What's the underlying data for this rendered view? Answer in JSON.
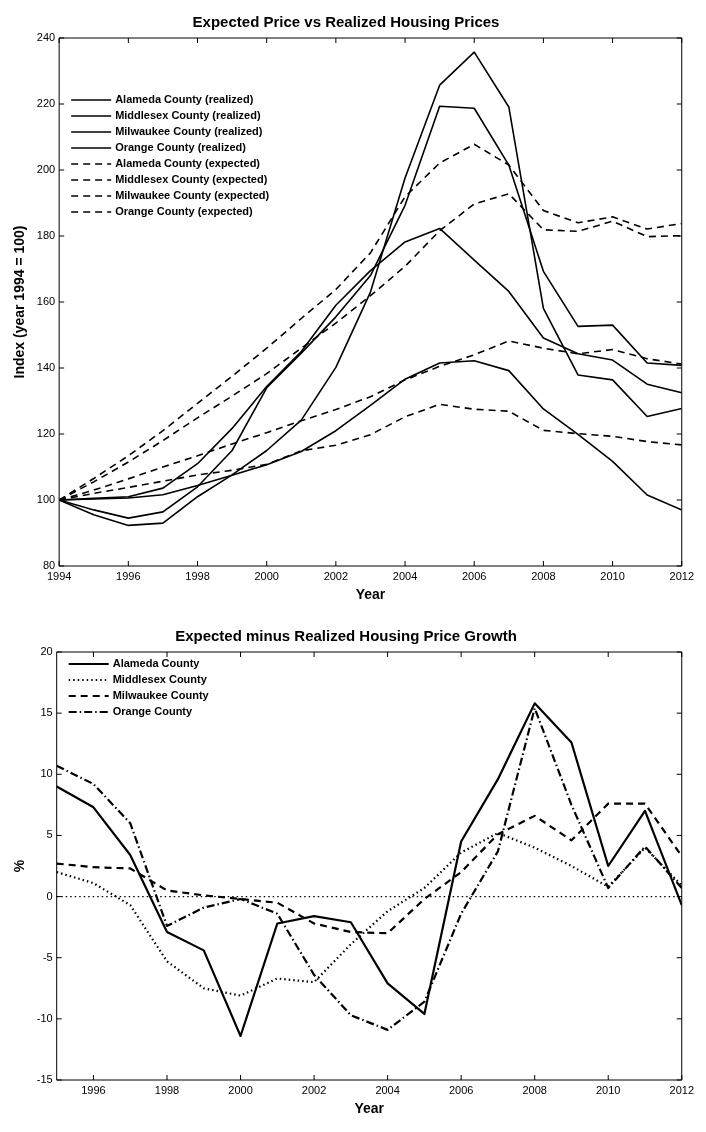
{
  "chart_data": [
    {
      "type": "line",
      "title": "Expected Price vs Realized Housing Prices",
      "xlabel": "Year",
      "ylabel": "Index (year 1994 = 100)",
      "x": [
        1994,
        1995,
        1996,
        1997,
        1998,
        1999,
        2000,
        2001,
        2002,
        2003,
        2004,
        2005,
        2006,
        2007,
        2008,
        2009,
        2010,
        2011,
        2012
      ],
      "xlim": [
        1994,
        2012
      ],
      "xticks": [
        1994,
        1996,
        1998,
        2000,
        2002,
        2004,
        2006,
        2008,
        2010,
        2012
      ],
      "ylim": [
        80,
        240
      ],
      "yticks": [
        80,
        100,
        120,
        140,
        160,
        180,
        200,
        220,
        240
      ],
      "legend": "top left",
      "marker": "none",
      "series": [
        {
          "name": "Alameda County (realized)",
          "color": "#000000",
          "line_style": "solid",
          "values": [
            100,
            97,
            94.5,
            96.4,
            104,
            115,
            134,
            144.5,
            155.5,
            168,
            189.3,
            219.3,
            218.7,
            201.5,
            169.3,
            152.6,
            153,
            141.5,
            140.8
          ]
        },
        {
          "name": "Middlesex County (realized)",
          "color": "#000000",
          "line_style": "solid",
          "values": [
            100,
            100.5,
            101,
            103.6,
            111,
            121.7,
            134.4,
            145,
            159,
            169.5,
            178.2,
            182.3,
            172.7,
            163.2,
            149.1,
            144.3,
            142.4,
            135.1,
            132.5
          ]
        },
        {
          "name": "Milwaukee County (realized)",
          "color": "#000000",
          "line_style": "solid",
          "values": [
            100,
            100.3,
            100.6,
            101.6,
            104.4,
            107.5,
            110.7,
            114.7,
            121,
            128.7,
            136.6,
            141.5,
            142.2,
            139.2,
            127.6,
            119.9,
            111.7,
            101.5,
            97
          ]
        },
        {
          "name": "Orange County (realized)",
          "color": "#000000",
          "line_style": "solid",
          "values": [
            100,
            95.5,
            92.3,
            93,
            101,
            107.6,
            115,
            124.2,
            140.2,
            163,
            197.6,
            225.7,
            235.7,
            219.1,
            158.1,
            137.9,
            136.4,
            125.3,
            127.7
          ]
        },
        {
          "name": "Alameda County (expected)",
          "color": "#000000",
          "line_style": "dashed",
          "values": [
            100,
            106.5,
            113.4,
            121,
            129.3,
            137.5,
            146,
            155,
            163.8,
            174.9,
            191.9,
            202.1,
            207.8,
            201.5,
            187.7,
            184,
            185.8,
            182.1,
            183.8
          ]
        },
        {
          "name": "Middlesex County (expected)",
          "color": "#000000",
          "line_style": "dashed",
          "values": [
            100,
            103,
            106.4,
            110,
            113.4,
            117,
            120.4,
            124,
            127.4,
            131.3,
            136.4,
            140.5,
            144,
            148.2,
            146,
            144.3,
            145.6,
            142.8,
            141.2
          ]
        },
        {
          "name": "Milwaukee County (expected)",
          "color": "#000000",
          "line_style": "dashed",
          "values": [
            100,
            102,
            103.8,
            105.7,
            107.6,
            109,
            110.8,
            114.9,
            116.6,
            119.8,
            125.2,
            129,
            127.5,
            126.9,
            121.1,
            120.1,
            119.3,
            117.7,
            116.7
          ]
        },
        {
          "name": "Orange County (expected)",
          "color": "#000000",
          "line_style": "dashed",
          "values": [
            100,
            105.5,
            111.5,
            118,
            124.9,
            131.5,
            138.3,
            146,
            153.6,
            161.9,
            170.8,
            181.6,
            189.7,
            192.8,
            181.9,
            181.4,
            184.5,
            179.8,
            180.1
          ]
        }
      ]
    },
    {
      "type": "line",
      "title": "Expected minus Realized Housing Price Growth",
      "xlabel": "Year",
      "ylabel": "%",
      "x": [
        1995,
        1996,
        1997,
        1998,
        1999,
        2000,
        2001,
        2002,
        2003,
        2004,
        2005,
        2006,
        2007,
        2008,
        2009,
        2010,
        2011,
        2012
      ],
      "xlim": [
        1995,
        2012
      ],
      "xticks": [
        1996,
        1998,
        2000,
        2002,
        2004,
        2006,
        2008,
        2010,
        2012
      ],
      "ylim": [
        -15,
        20
      ],
      "yticks": [
        -15,
        -10,
        -5,
        0,
        5,
        10,
        15,
        20
      ],
      "legend": "top left",
      "marker": "none",
      "ref_lines": [
        {
          "axis": "y",
          "value": 0,
          "color": "#000000",
          "line_style": "dotted"
        }
      ],
      "series": [
        {
          "name": "Alameda County",
          "color": "#000000",
          "line_style": "solid",
          "values": [
            9,
            7.3,
            3.4,
            -2.9,
            -4.4,
            -11.4,
            -2.2,
            -1.6,
            -2.1,
            -7.1,
            -9.6,
            4.5,
            9.6,
            15.8,
            12.6,
            2.5,
            7,
            -0.7
          ]
        },
        {
          "name": "Middlesex County",
          "color": "#000000",
          "line_style": "dotted",
          "values": [
            2,
            1.1,
            -0.7,
            -5.3,
            -7.5,
            -8.1,
            -6.7,
            -7,
            -3.9,
            -1.2,
            0.7,
            3.6,
            5.2,
            4,
            2.5,
            0.8,
            4,
            0.9
          ]
        },
        {
          "name": "Milwaukee County",
          "color": "#000000",
          "line_style": "dashed",
          "values": [
            2.7,
            2.4,
            2.3,
            0.5,
            0.1,
            -0.2,
            -0.5,
            -2.2,
            -2.9,
            -3,
            -0.2,
            2,
            5.1,
            6.6,
            4.6,
            7.6,
            7.6,
            3.3
          ]
        },
        {
          "name": "Orange County",
          "color": "#000000",
          "line_style": "dashdot",
          "values": [
            10.7,
            9.2,
            6,
            -2.4,
            -0.9,
            -0.2,
            -1.4,
            -6.4,
            -9.7,
            -10.9,
            -8.6,
            -1.4,
            3.7,
            15.4,
            7.5,
            0.7,
            4.1,
            0.7
          ]
        }
      ]
    }
  ]
}
